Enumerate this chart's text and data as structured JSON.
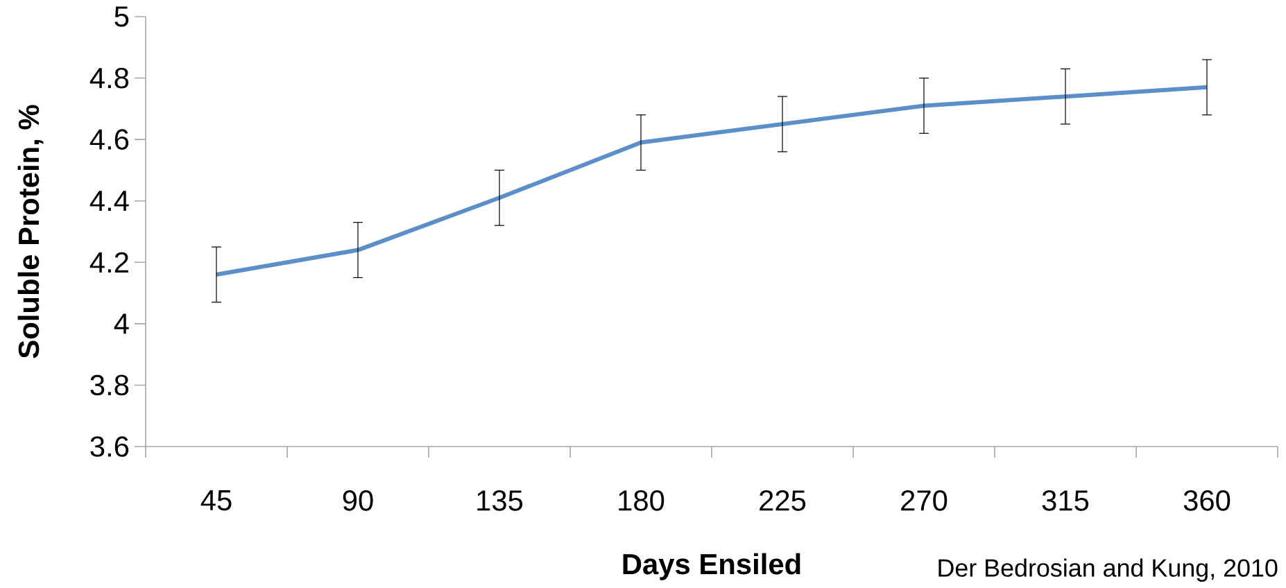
{
  "chart_data": {
    "type": "line",
    "xlabel": "Days Ensiled",
    "ylabel": "Soluble Protein, %",
    "categories": [
      "45",
      "90",
      "135",
      "180",
      "225",
      "270",
      "315",
      "360"
    ],
    "series": [
      {
        "color": "#5b8fc9",
        "values": [
          4.16,
          4.24,
          4.41,
          4.59,
          4.65,
          4.71,
          4.74,
          4.77
        ],
        "errors": [
          0.09,
          0.09,
          0.09,
          0.09,
          0.09,
          0.09,
          0.09,
          0.09
        ]
      }
    ],
    "ylim": [
      3.6,
      5
    ],
    "yticks": [
      3.6,
      3.8,
      4,
      4.2,
      4.4,
      4.6,
      4.8,
      5
    ],
    "marker": "none",
    "grid": false,
    "annotations": [
      "Der Bedrosian and Kung, 2010"
    ]
  }
}
